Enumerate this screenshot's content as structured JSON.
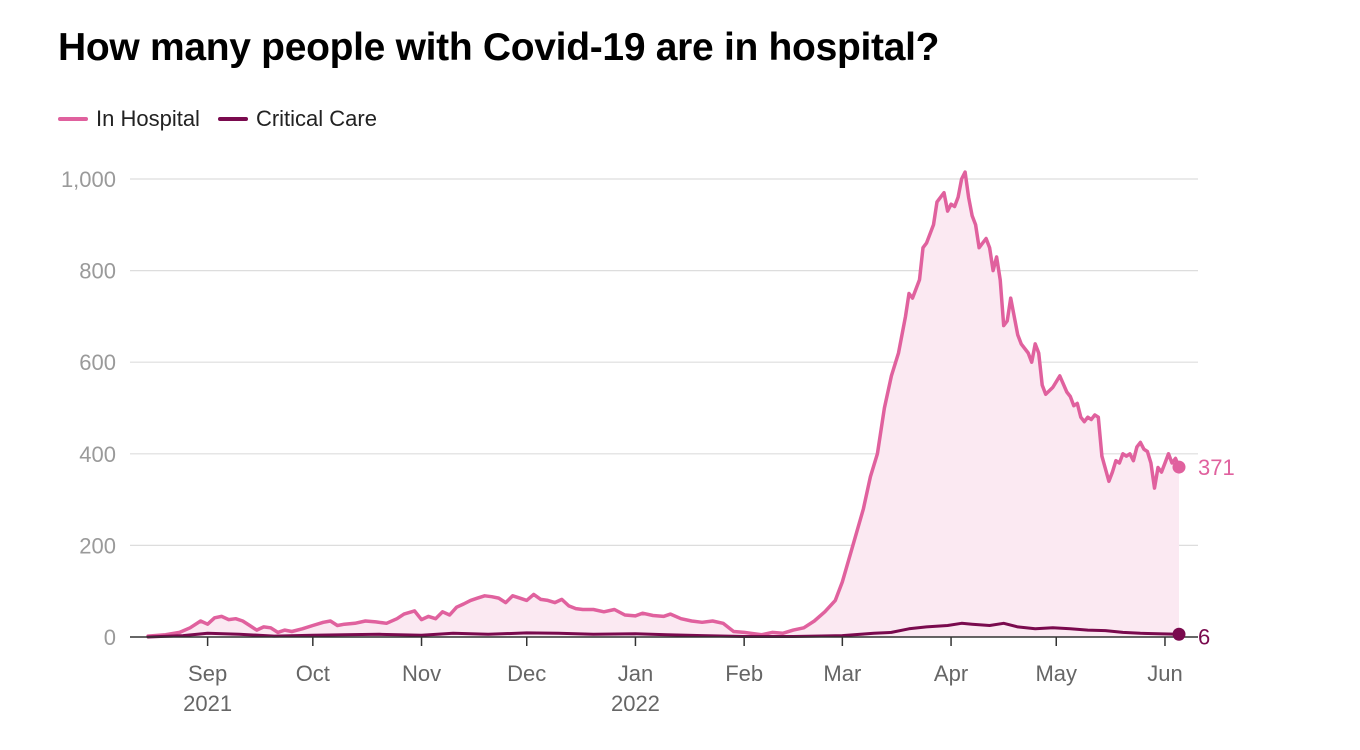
{
  "colors": {
    "hospital": "#e0619e",
    "critical": "#7a0a4e",
    "area": "#fbe9f2",
    "grid": "#dddddd",
    "axis_text": "#9a9a9a",
    "tick_text": "#666666"
  },
  "chart_data": {
    "type": "area",
    "title": "How many people with Covid-19 are in hospital?",
    "xlabel": "",
    "ylabel": "",
    "ylim": [
      0,
      1000
    ],
    "y_ticks": [
      0,
      200,
      400,
      600,
      800,
      1000
    ],
    "y_tick_labels": [
      "0",
      "200",
      "400",
      "600",
      "800",
      "1,000"
    ],
    "x_tick_labels": [
      {
        "month": "Sep",
        "year": "2021"
      },
      {
        "month": "Oct",
        "year": ""
      },
      {
        "month": "Nov",
        "year": ""
      },
      {
        "month": "Dec",
        "year": ""
      },
      {
        "month": "Jan",
        "year": "2022"
      },
      {
        "month": "Feb",
        "year": ""
      },
      {
        "month": "Mar",
        "year": ""
      },
      {
        "month": "Apr",
        "year": ""
      },
      {
        "month": "May",
        "year": ""
      },
      {
        "month": "Jun",
        "year": ""
      }
    ],
    "x_start": "2021-08-15",
    "x_end": "2022-06-05",
    "grid": true,
    "legend": "top-left",
    "series": [
      {
        "name": "In Hospital",
        "key": "hospital",
        "end_label": "371",
        "points": [
          [
            "2021-08-15",
            2
          ],
          [
            "2021-08-20",
            5
          ],
          [
            "2021-08-24",
            10
          ],
          [
            "2021-08-27",
            20
          ],
          [
            "2021-08-30",
            35
          ],
          [
            "2021-09-01",
            28
          ],
          [
            "2021-09-03",
            42
          ],
          [
            "2021-09-05",
            45
          ],
          [
            "2021-09-07",
            38
          ],
          [
            "2021-09-09",
            40
          ],
          [
            "2021-09-11",
            35
          ],
          [
            "2021-09-13",
            25
          ],
          [
            "2021-09-15",
            15
          ],
          [
            "2021-09-17",
            22
          ],
          [
            "2021-09-19",
            20
          ],
          [
            "2021-09-21",
            10
          ],
          [
            "2021-09-23",
            15
          ],
          [
            "2021-09-25",
            12
          ],
          [
            "2021-09-28",
            18
          ],
          [
            "2021-10-01",
            25
          ],
          [
            "2021-10-04",
            32
          ],
          [
            "2021-10-06",
            35
          ],
          [
            "2021-10-08",
            25
          ],
          [
            "2021-10-10",
            28
          ],
          [
            "2021-10-13",
            30
          ],
          [
            "2021-10-16",
            35
          ],
          [
            "2021-10-19",
            33
          ],
          [
            "2021-10-22",
            30
          ],
          [
            "2021-10-25",
            40
          ],
          [
            "2021-10-27",
            50
          ],
          [
            "2021-10-30",
            57
          ],
          [
            "2021-11-01",
            38
          ],
          [
            "2021-11-03",
            45
          ],
          [
            "2021-11-05",
            40
          ],
          [
            "2021-11-07",
            55
          ],
          [
            "2021-11-09",
            48
          ],
          [
            "2021-11-11",
            65
          ],
          [
            "2021-11-13",
            72
          ],
          [
            "2021-11-15",
            80
          ],
          [
            "2021-11-17",
            85
          ],
          [
            "2021-11-19",
            90
          ],
          [
            "2021-11-21",
            88
          ],
          [
            "2021-11-23",
            85
          ],
          [
            "2021-11-25",
            75
          ],
          [
            "2021-11-27",
            90
          ],
          [
            "2021-11-29",
            85
          ],
          [
            "2021-12-01",
            80
          ],
          [
            "2021-12-03",
            93
          ],
          [
            "2021-12-05",
            82
          ],
          [
            "2021-12-07",
            80
          ],
          [
            "2021-12-09",
            75
          ],
          [
            "2021-12-11",
            82
          ],
          [
            "2021-12-13",
            68
          ],
          [
            "2021-12-15",
            62
          ],
          [
            "2021-12-17",
            60
          ],
          [
            "2021-12-20",
            60
          ],
          [
            "2021-12-23",
            55
          ],
          [
            "2021-12-26",
            60
          ],
          [
            "2021-12-29",
            48
          ],
          [
            "2022-01-01",
            46
          ],
          [
            "2022-01-03",
            52
          ],
          [
            "2022-01-06",
            47
          ],
          [
            "2022-01-09",
            45
          ],
          [
            "2022-01-11",
            50
          ],
          [
            "2022-01-14",
            40
          ],
          [
            "2022-01-17",
            35
          ],
          [
            "2022-01-20",
            32
          ],
          [
            "2022-01-23",
            35
          ],
          [
            "2022-01-26",
            30
          ],
          [
            "2022-01-29",
            12
          ],
          [
            "2022-02-01",
            10
          ],
          [
            "2022-02-03",
            8
          ],
          [
            "2022-02-06",
            5
          ],
          [
            "2022-02-09",
            10
          ],
          [
            "2022-02-12",
            8
          ],
          [
            "2022-02-15",
            15
          ],
          [
            "2022-02-18",
            20
          ],
          [
            "2022-02-21",
            35
          ],
          [
            "2022-02-24",
            55
          ],
          [
            "2022-02-27",
            80
          ],
          [
            "2022-03-01",
            120
          ],
          [
            "2022-03-04",
            200
          ],
          [
            "2022-03-07",
            280
          ],
          [
            "2022-03-09",
            350
          ],
          [
            "2022-03-11",
            400
          ],
          [
            "2022-03-13",
            500
          ],
          [
            "2022-03-15",
            570
          ],
          [
            "2022-03-17",
            620
          ],
          [
            "2022-03-19",
            700
          ],
          [
            "2022-03-20",
            750
          ],
          [
            "2022-03-21",
            740
          ],
          [
            "2022-03-23",
            780
          ],
          [
            "2022-03-24",
            850
          ],
          [
            "2022-03-25",
            860
          ],
          [
            "2022-03-27",
            900
          ],
          [
            "2022-03-28",
            950
          ],
          [
            "2022-03-30",
            970
          ],
          [
            "2022-03-31",
            930
          ],
          [
            "2022-04-01",
            945
          ],
          [
            "2022-04-02",
            940
          ],
          [
            "2022-04-03",
            960
          ],
          [
            "2022-04-04",
            1000
          ],
          [
            "2022-04-05",
            1015
          ],
          [
            "2022-04-06",
            960
          ],
          [
            "2022-04-07",
            920
          ],
          [
            "2022-04-08",
            900
          ],
          [
            "2022-04-09",
            850
          ],
          [
            "2022-04-11",
            870
          ],
          [
            "2022-04-12",
            850
          ],
          [
            "2022-04-13",
            800
          ],
          [
            "2022-04-14",
            830
          ],
          [
            "2022-04-15",
            780
          ],
          [
            "2022-04-16",
            680
          ],
          [
            "2022-04-17",
            690
          ],
          [
            "2022-04-18",
            740
          ],
          [
            "2022-04-19",
            700
          ],
          [
            "2022-04-20",
            660
          ],
          [
            "2022-04-21",
            640
          ],
          [
            "2022-04-23",
            620
          ],
          [
            "2022-04-24",
            600
          ],
          [
            "2022-04-25",
            640
          ],
          [
            "2022-04-26",
            620
          ],
          [
            "2022-04-27",
            550
          ],
          [
            "2022-04-28",
            530
          ],
          [
            "2022-04-30",
            545
          ],
          [
            "2022-05-02",
            570
          ],
          [
            "2022-05-04",
            535
          ],
          [
            "2022-05-05",
            525
          ],
          [
            "2022-05-06",
            505
          ],
          [
            "2022-05-07",
            510
          ],
          [
            "2022-05-08",
            480
          ],
          [
            "2022-05-09",
            470
          ],
          [
            "2022-05-10",
            480
          ],
          [
            "2022-05-11",
            475
          ],
          [
            "2022-05-12",
            485
          ],
          [
            "2022-05-13",
            480
          ],
          [
            "2022-05-14",
            395
          ],
          [
            "2022-05-16",
            340
          ],
          [
            "2022-05-17",
            360
          ],
          [
            "2022-05-18",
            385
          ],
          [
            "2022-05-19",
            380
          ],
          [
            "2022-05-20",
            400
          ],
          [
            "2022-05-21",
            395
          ],
          [
            "2022-05-22",
            400
          ],
          [
            "2022-05-23",
            385
          ],
          [
            "2022-05-24",
            415
          ],
          [
            "2022-05-25",
            425
          ],
          [
            "2022-05-26",
            410
          ],
          [
            "2022-05-27",
            405
          ],
          [
            "2022-05-28",
            380
          ],
          [
            "2022-05-29",
            325
          ],
          [
            "2022-05-30",
            370
          ],
          [
            "2022-05-31",
            360
          ],
          [
            "2022-06-01",
            380
          ],
          [
            "2022-06-02",
            400
          ],
          [
            "2022-06-03",
            380
          ],
          [
            "2022-06-04",
            390
          ],
          [
            "2022-06-05",
            371
          ]
        ]
      },
      {
        "name": "Critical Care",
        "key": "critical",
        "end_label": "6",
        "points": [
          [
            "2021-08-15",
            0
          ],
          [
            "2021-08-25",
            3
          ],
          [
            "2021-09-01",
            8
          ],
          [
            "2021-09-10",
            6
          ],
          [
            "2021-09-20",
            2
          ],
          [
            "2021-10-01",
            4
          ],
          [
            "2021-10-10",
            5
          ],
          [
            "2021-10-20",
            6
          ],
          [
            "2021-11-01",
            4
          ],
          [
            "2021-11-10",
            8
          ],
          [
            "2021-11-20",
            6
          ],
          [
            "2021-12-01",
            9
          ],
          [
            "2021-12-10",
            8
          ],
          [
            "2021-12-20",
            6
          ],
          [
            "2022-01-01",
            7
          ],
          [
            "2022-01-10",
            5
          ],
          [
            "2022-01-20",
            3
          ],
          [
            "2022-02-01",
            1
          ],
          [
            "2022-02-15",
            1
          ],
          [
            "2022-03-01",
            3
          ],
          [
            "2022-03-10",
            8
          ],
          [
            "2022-03-15",
            10
          ],
          [
            "2022-03-20",
            18
          ],
          [
            "2022-03-25",
            22
          ],
          [
            "2022-03-31",
            25
          ],
          [
            "2022-04-04",
            30
          ],
          [
            "2022-04-07",
            28
          ],
          [
            "2022-04-12",
            25
          ],
          [
            "2022-04-16",
            30
          ],
          [
            "2022-04-20",
            22
          ],
          [
            "2022-04-25",
            18
          ],
          [
            "2022-04-30",
            20
          ],
          [
            "2022-05-05",
            18
          ],
          [
            "2022-05-10",
            15
          ],
          [
            "2022-05-15",
            14
          ],
          [
            "2022-05-20",
            10
          ],
          [
            "2022-05-25",
            8
          ],
          [
            "2022-05-30",
            7
          ],
          [
            "2022-06-05",
            6
          ]
        ]
      }
    ]
  }
}
